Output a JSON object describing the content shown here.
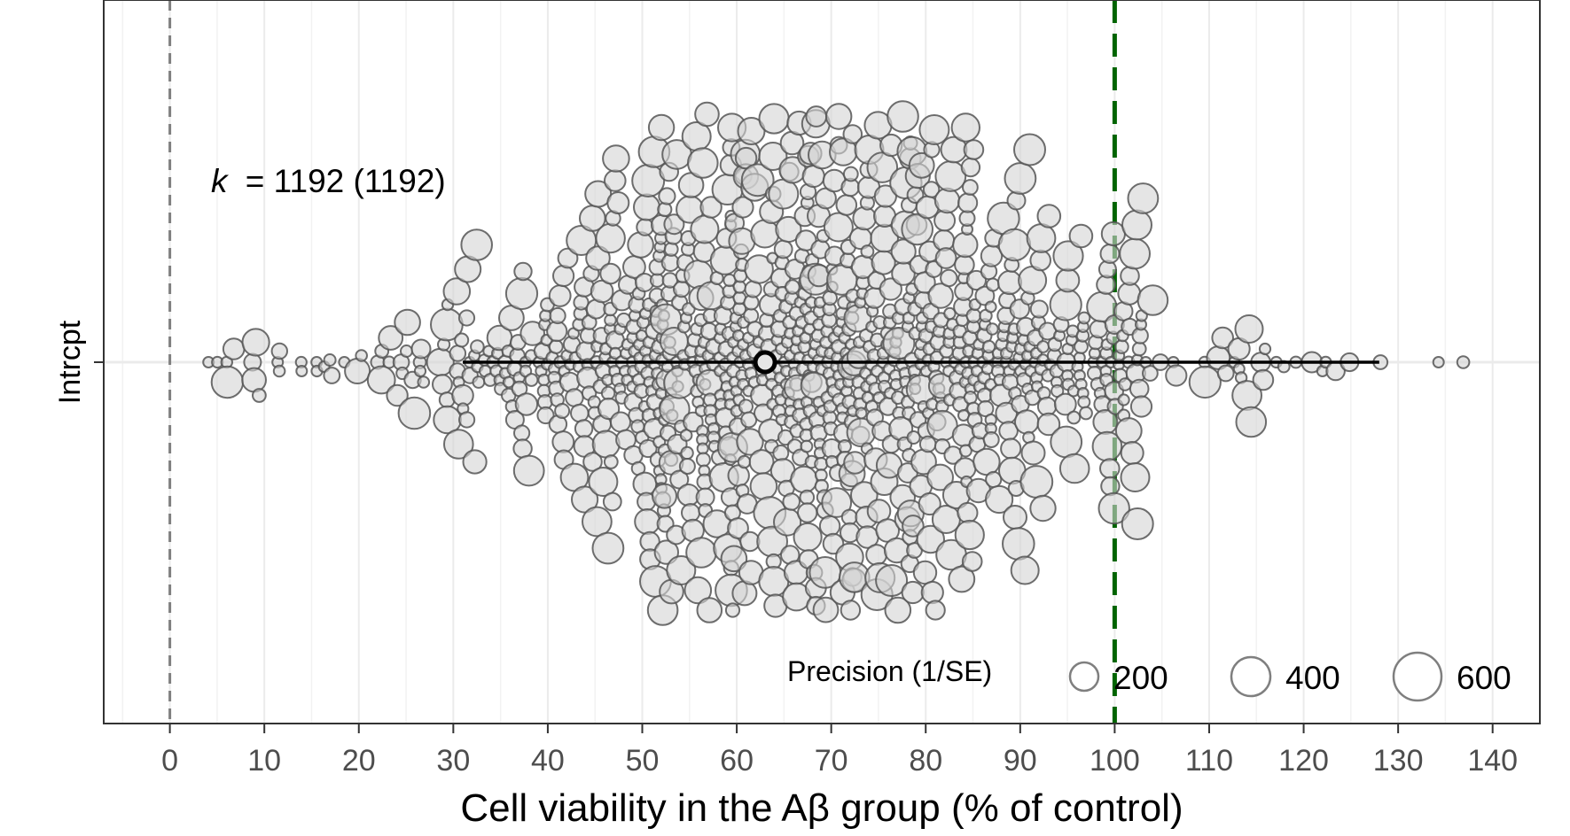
{
  "chart_data": {
    "type": "scatter",
    "subtype": "orchard-plot",
    "xlabel": "Cell viability in the Aβ group (% of control)",
    "ylabel": "Intrcpt",
    "xlim": [
      -7,
      145
    ],
    "x_ticks": [
      0,
      10,
      20,
      30,
      40,
      50,
      60,
      70,
      80,
      90,
      100,
      110,
      120,
      130,
      140
    ],
    "grid": true,
    "k_label": "k",
    "k_value": "= 1192 (1192)",
    "k_total": 1192,
    "estimate": 63,
    "ci": [
      31,
      128
    ],
    "reference_lines": [
      {
        "name": "zero",
        "x": 0,
        "color": "#7f7f7f",
        "style": "dashed"
      },
      {
        "name": "control",
        "x": 100,
        "color": "#006400",
        "style": "long-dashed"
      }
    ],
    "point_fill": "#d3d3d3",
    "point_stroke": "#555555",
    "legend": {
      "title": "Precision (1/SE)",
      "placement": "bottom-right",
      "entries": [
        {
          "label": "200",
          "value": 200
        },
        {
          "label": "400",
          "value": 400
        },
        {
          "label": "600",
          "value": 600
        }
      ]
    }
  }
}
